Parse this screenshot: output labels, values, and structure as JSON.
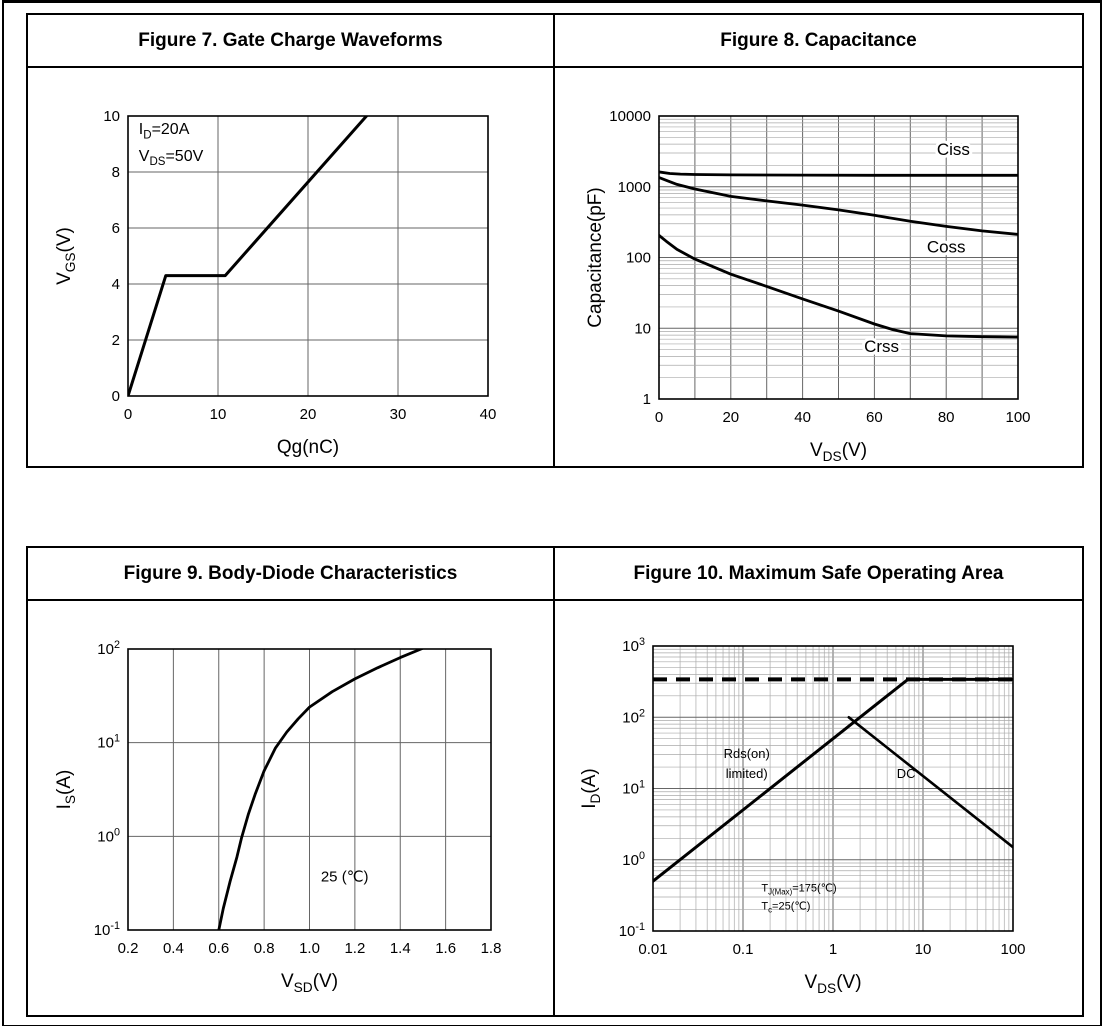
{
  "page": {
    "background": "#ffffff",
    "border_color": "#000000",
    "curve_color": "#000000"
  },
  "chart_data": [
    {
      "id": "figure7",
      "type": "line",
      "title": "Figure 7. Gate Charge Waveforms",
      "xlabel": "Qg(nC)",
      "ylabel": "V_{GS}(V)",
      "x_scale": "linear",
      "y_scale": "linear",
      "xlim": [
        0,
        40
      ],
      "ylim": [
        0,
        10
      ],
      "x_ticks": [
        0,
        10,
        20,
        30,
        40
      ],
      "x_tick_labels": [
        "0",
        "10",
        "20",
        "30",
        "40"
      ],
      "y_ticks": [
        0,
        2,
        4,
        6,
        8,
        10
      ],
      "y_tick_labels": [
        "0",
        "2",
        "4",
        "6",
        "8",
        "10"
      ],
      "grid": "major",
      "legend": "none",
      "series": [
        {
          "name": "VGS vs Qg",
          "x": [
            0,
            4.2,
            10.8,
            26.5
          ],
          "y": [
            0,
            4.3,
            4.3,
            10
          ],
          "width": 3
        }
      ],
      "annotations": [
        {
          "text": "I_{D}=20A",
          "x": 1.2,
          "y": 9.35,
          "size": 16,
          "anchor": "start"
        },
        {
          "text": "V_{DS}=50V",
          "x": 1.2,
          "y": 8.4,
          "size": 16,
          "anchor": "start"
        }
      ]
    },
    {
      "id": "figure8",
      "type": "line",
      "title": "Figure 8. Capacitance",
      "xlabel": "V_{DS}(V)",
      "ylabel": "Capacitance(pF)",
      "x_scale": "linear",
      "y_scale": "log",
      "xlim": [
        0,
        100
      ],
      "ylim": [
        1,
        10000
      ],
      "x_ticks": [
        0,
        20,
        40,
        60,
        80,
        100
      ],
      "x_tick_labels": [
        "0",
        "20",
        "40",
        "60",
        "80",
        "100"
      ],
      "x_grid_extra": [
        10,
        30,
        50,
        70,
        90
      ],
      "y_ticks": [
        1,
        10,
        100,
        1000,
        10000
      ],
      "y_tick_labels": [
        "1",
        "10",
        "100",
        "1000",
        "10000"
      ],
      "y_minor": true,
      "legend": "inline-labels",
      "series": [
        {
          "name": "Ciss",
          "x": [
            0,
            3,
            6,
            10,
            20,
            40,
            60,
            80,
            100
          ],
          "y": [
            1620,
            1540,
            1510,
            1490,
            1470,
            1460,
            1450,
            1450,
            1450
          ],
          "width": 2.8
        },
        {
          "name": "Coss",
          "x": [
            0,
            3,
            5,
            10,
            20,
            30,
            40,
            50,
            60,
            70,
            80,
            90,
            100
          ],
          "y": [
            1350,
            1180,
            1080,
            930,
            730,
            630,
            550,
            470,
            395,
            325,
            275,
            238,
            212
          ],
          "width": 2.8
        },
        {
          "name": "Crss",
          "x": [
            0,
            2,
            5,
            10,
            20,
            30,
            40,
            50,
            60,
            65,
            70,
            80,
            90,
            100
          ],
          "y": [
            205,
            170,
            130,
            95,
            58,
            39,
            26,
            17.5,
            11.5,
            9.6,
            8.4,
            7.8,
            7.6,
            7.5
          ],
          "width": 2.8
        }
      ],
      "annotations": [
        {
          "text": "Ciss",
          "x": 82,
          "y": 2800,
          "size": 17,
          "anchor": "middle",
          "halo": true
        },
        {
          "text": "Coss",
          "x": 80,
          "y": 118,
          "size": 17,
          "anchor": "middle",
          "halo": true
        },
        {
          "text": "Crss",
          "x": 62,
          "y": 4.6,
          "size": 17,
          "anchor": "middle",
          "halo": true
        }
      ]
    },
    {
      "id": "figure9",
      "type": "line",
      "title": "Figure 9. Body-Diode Characteristics",
      "xlabel": "V_{SD}(V)",
      "ylabel": "I_{S}(A)",
      "x_scale": "linear",
      "y_scale": "log",
      "xlim": [
        0.2,
        1.8
      ],
      "ylim": [
        0.1,
        100
      ],
      "x_ticks": [
        0.2,
        0.4,
        0.6,
        0.8,
        1.0,
        1.2,
        1.4,
        1.6,
        1.8
      ],
      "x_tick_labels": [
        "0.2",
        "0.4",
        "0.6",
        "0.8",
        "1.0",
        "1.2",
        "1.4",
        "1.6",
        "1.8"
      ],
      "y_ticks": [
        0.1,
        1,
        10,
        100
      ],
      "y_tick_labels": [
        "10^{-1}",
        "10^{0}",
        "10^{1}",
        "10^{2}"
      ],
      "y_minor": false,
      "legend": "none",
      "series": [
        {
          "name": "IS at 25C",
          "x": [
            0.6,
            0.62,
            0.65,
            0.68,
            0.7,
            0.73,
            0.76,
            0.8,
            0.85,
            0.9,
            0.95,
            1.0,
            1.1,
            1.2,
            1.3,
            1.4,
            1.5
          ],
          "y": [
            0.1,
            0.17,
            0.33,
            0.6,
            0.95,
            1.7,
            2.8,
            5.0,
            8.8,
            13,
            18,
            24,
            35,
            48,
            63,
            81,
            102
          ],
          "width": 2.8
        }
      ],
      "annotations": [
        {
          "text": "25 (℃)",
          "x": 1.05,
          "y": 0.33,
          "size": 15,
          "anchor": "start"
        }
      ]
    },
    {
      "id": "figure10",
      "type": "line",
      "title": "Figure 10. Maximum Safe Operating Area",
      "xlabel": "V_{DS}(V)",
      "ylabel": "I_{D}(A)",
      "x_scale": "log",
      "y_scale": "log",
      "xlim": [
        0.01,
        100
      ],
      "ylim": [
        0.1,
        1000
      ],
      "x_ticks": [
        0.01,
        0.1,
        1,
        10,
        100
      ],
      "x_tick_labels": [
        "0.01",
        "0.1",
        "1",
        "10",
        "100"
      ],
      "x_minor": true,
      "y_ticks": [
        0.1,
        1,
        10,
        100,
        1000
      ],
      "y_tick_labels": [
        "10^{-1}",
        "10^{0}",
        "10^{1}",
        "10^{2}",
        "10^{3}"
      ],
      "y_minor": true,
      "legend": "inline-labels",
      "series": [
        {
          "name": "pulse-current-limit",
          "x": [
            0.01,
            100
          ],
          "y": [
            340,
            340
          ],
          "width": 4,
          "dash": "14,9"
        },
        {
          "name": "rds-on-limited",
          "x": [
            0.01,
            6.8,
            100
          ],
          "y": [
            0.5,
            340,
            340
          ],
          "width": 3
        },
        {
          "name": "dc-power-limit",
          "x": [
            1.5,
            100
          ],
          "y": [
            100,
            1.5
          ],
          "width": 2.6
        }
      ],
      "annotations": [
        {
          "text": "Rds(on)",
          "x": 0.11,
          "y": 27,
          "size": 13,
          "anchor": "middle"
        },
        {
          "text": "limited)",
          "x": 0.11,
          "y": 14,
          "size": 13,
          "anchor": "middle"
        },
        {
          "text": "DC",
          "x": 6.5,
          "y": 14,
          "size": 13,
          "anchor": "middle"
        },
        {
          "text": "T_{J(Max)}=175(℃)",
          "x": 0.16,
          "y": 0.36,
          "size": 11,
          "anchor": "start"
        },
        {
          "text": "T_{c}=25(℃)",
          "x": 0.16,
          "y": 0.2,
          "size": 11,
          "anchor": "start"
        }
      ]
    }
  ]
}
